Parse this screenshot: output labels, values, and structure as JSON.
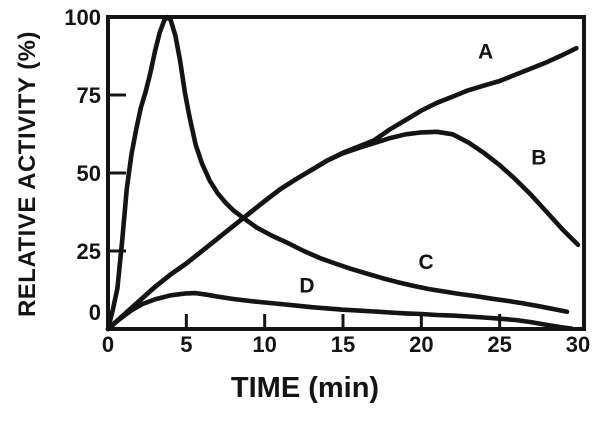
{
  "chart_data": {
    "type": "line",
    "title": "",
    "xlabel": "TIME (min)",
    "ylabel": "RELATIVE ACTIVITY (%)",
    "xlim": [
      0,
      30
    ],
    "ylim": [
      0,
      100
    ],
    "x_ticks": [
      0,
      5,
      10,
      15,
      20,
      25,
      30
    ],
    "y_ticks": [
      0,
      25,
      50,
      75,
      100
    ],
    "grid": false,
    "legend_position": "inline-labels",
    "frame": "full-box",
    "line_color": "#141414",
    "background_color": "#ffffff",
    "series": [
      {
        "name": "A",
        "label": {
          "t": 24.1,
          "v": 89
        },
        "points": [
          [
            0,
            0
          ],
          [
            1,
            4.5
          ],
          [
            2,
            9
          ],
          [
            3,
            13.5
          ],
          [
            4,
            17.5
          ],
          [
            5,
            21
          ],
          [
            6,
            25
          ],
          [
            7,
            29
          ],
          [
            8,
            33
          ],
          [
            9,
            37
          ],
          [
            10,
            41
          ],
          [
            11,
            44.8
          ],
          [
            12,
            48
          ],
          [
            13,
            51
          ],
          [
            14,
            54
          ],
          [
            15,
            56.5
          ],
          [
            16,
            58.5
          ],
          [
            17,
            60.5
          ],
          [
            18,
            64
          ],
          [
            19,
            67
          ],
          [
            20,
            70
          ],
          [
            21,
            72.5
          ],
          [
            22,
            74.5
          ],
          [
            23,
            76.5
          ],
          [
            24,
            78
          ],
          [
            25,
            79.5
          ],
          [
            26,
            81.5
          ],
          [
            27,
            83.5
          ],
          [
            28,
            85.5
          ],
          [
            29,
            87.8
          ],
          [
            29.9,
            90
          ]
        ]
      },
      {
        "name": "B",
        "label": {
          "t": 27.5,
          "v": 55
        },
        "points": [
          [
            0,
            0
          ],
          [
            1,
            4.5
          ],
          [
            2,
            9
          ],
          [
            3,
            13.5
          ],
          [
            4,
            17.5
          ],
          [
            5,
            21
          ],
          [
            6,
            25
          ],
          [
            7,
            29
          ],
          [
            8,
            33
          ],
          [
            9,
            37
          ],
          [
            10,
            41
          ],
          [
            11,
            44.8
          ],
          [
            12,
            48
          ],
          [
            13,
            51
          ],
          [
            14,
            54
          ],
          [
            15,
            56.3
          ],
          [
            16,
            58
          ],
          [
            17,
            59.6
          ],
          [
            18,
            61.2
          ],
          [
            19,
            62.4
          ],
          [
            20,
            63
          ],
          [
            21,
            63.2
          ],
          [
            22,
            62.4
          ],
          [
            23,
            59.8
          ],
          [
            24,
            56.4
          ],
          [
            25,
            52.5
          ],
          [
            26,
            48
          ],
          [
            27,
            43
          ],
          [
            28,
            37.5
          ],
          [
            29,
            32
          ],
          [
            30,
            27
          ]
        ]
      },
      {
        "name": "C",
        "label": {
          "t": 20.3,
          "v": 21.5
        },
        "points": [
          [
            0,
            0
          ],
          [
            0.3,
            6
          ],
          [
            0.6,
            13
          ],
          [
            0.9,
            28
          ],
          [
            1.2,
            45
          ],
          [
            1.5,
            56
          ],
          [
            1.8,
            64
          ],
          [
            2.1,
            71
          ],
          [
            2.4,
            76
          ],
          [
            2.7,
            82
          ],
          [
            3,
            89
          ],
          [
            3.3,
            95
          ],
          [
            3.6,
            99
          ],
          [
            3.8,
            100
          ],
          [
            4,
            99
          ],
          [
            4.3,
            94
          ],
          [
            4.6,
            86
          ],
          [
            4.9,
            76
          ],
          [
            5.2,
            68
          ],
          [
            5.6,
            59
          ],
          [
            6,
            53
          ],
          [
            6.5,
            47.5
          ],
          [
            7,
            43.5
          ],
          [
            7.5,
            40.5
          ],
          [
            8,
            38
          ],
          [
            8.8,
            35
          ],
          [
            9.5,
            32.5
          ],
          [
            10.5,
            29.8
          ],
          [
            11.5,
            27.5
          ],
          [
            12.5,
            25
          ],
          [
            13.5,
            22.8
          ],
          [
            14.5,
            21
          ],
          [
            15.5,
            19.3
          ],
          [
            16.5,
            17.8
          ],
          [
            17.5,
            16.3
          ],
          [
            18.5,
            15
          ],
          [
            19.5,
            13.8
          ],
          [
            20.5,
            12.8
          ],
          [
            21.5,
            12
          ],
          [
            22.5,
            11.2
          ],
          [
            23.5,
            10.5
          ],
          [
            24.5,
            9.7
          ],
          [
            25.5,
            9
          ],
          [
            26.5,
            8.2
          ],
          [
            27.5,
            7.3
          ],
          [
            28.5,
            6.3
          ],
          [
            29.3,
            5.5
          ]
        ]
      },
      {
        "name": "D",
        "label": {
          "t": 12.7,
          "v": 14
        },
        "points": [
          [
            0,
            0
          ],
          [
            0.7,
            3
          ],
          [
            1.5,
            6
          ],
          [
            2.2,
            8
          ],
          [
            3,
            9.5
          ],
          [
            4,
            10.8
          ],
          [
            5,
            11.4
          ],
          [
            5.6,
            11.5
          ],
          [
            6.3,
            11
          ],
          [
            7,
            10.4
          ],
          [
            8,
            9.6
          ],
          [
            9,
            9
          ],
          [
            10,
            8.5
          ],
          [
            11,
            8
          ],
          [
            12,
            7.5
          ],
          [
            13,
            7
          ],
          [
            14,
            6.6
          ],
          [
            15,
            6.2
          ],
          [
            16,
            5.9
          ],
          [
            17,
            5.6
          ],
          [
            18,
            5.3
          ],
          [
            19,
            5
          ],
          [
            20,
            4.8
          ],
          [
            21,
            4.5
          ],
          [
            22,
            4.3
          ],
          [
            23,
            4
          ],
          [
            24,
            3.7
          ],
          [
            25,
            3.3
          ],
          [
            26,
            2.9
          ],
          [
            27,
            2.2
          ],
          [
            28,
            1.3
          ],
          [
            29,
            0.5
          ],
          [
            29.6,
            0.1
          ]
        ]
      }
    ]
  }
}
